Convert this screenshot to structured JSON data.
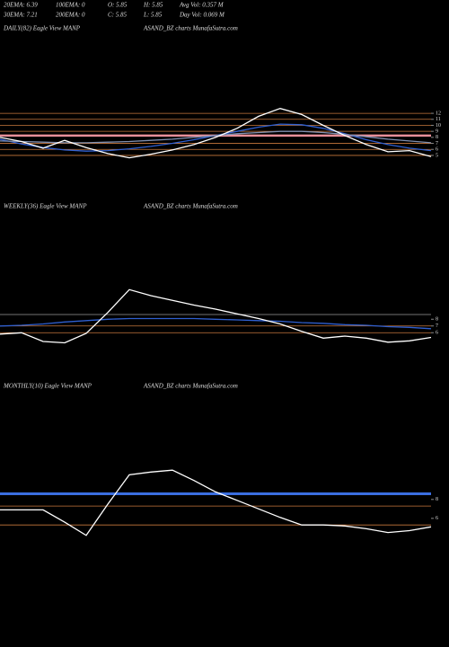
{
  "header": {
    "row1": [
      "20EMA: 6.39",
      "100EMA: 0",
      "O: 5.85",
      "H: 5.85",
      "Avg Vol: 0.357 M"
    ],
    "row2": [
      "30EMA: 7.21",
      "200EMA: 0",
      "C: 5.85",
      "L: 5.85",
      "Day Vol: 0.069 M"
    ]
  },
  "chart_data": [
    {
      "type": "line",
      "title": "DAILY(82) Eagle  View  MANP",
      "subtitle": "ASAND_BZ charts MunafaSutra.com",
      "ylim": [
        1.7,
        15.9
      ],
      "yticks": [
        12,
        11,
        10,
        9,
        8,
        7,
        6,
        5
      ],
      "hlines": [
        {
          "value": 12,
          "color": "#c8783c"
        },
        {
          "value": 11,
          "color": "#c8783c"
        },
        {
          "value": 10,
          "color": "#c8783c"
        },
        {
          "value": 9,
          "color": "#c8783c"
        },
        {
          "value": 8.3,
          "color": "#e8909a"
        },
        {
          "value": 7,
          "color": "#c8783c"
        },
        {
          "value": 6,
          "color": "#c8783c"
        },
        {
          "value": 5,
          "color": "#c8783c"
        }
      ],
      "series": [
        {
          "color": "#2f5fd0",
          "values": [
            7.7,
            6.9,
            6.3,
            5.9,
            5.7,
            5.8,
            6.1,
            6.5,
            7.0,
            7.6,
            8.3,
            9.0,
            9.7,
            10.2,
            10.1,
            9.5,
            8.6,
            7.6,
            6.8,
            6.2,
            5.8
          ]
        },
        {
          "color": "#7f8fb0",
          "values": [
            7.4,
            7.3,
            7.2,
            7.1,
            7.1,
            7.2,
            7.3,
            7.5,
            7.7,
            8.0,
            8.3,
            8.6,
            8.8,
            9.0,
            9.0,
            8.8,
            8.5,
            8.1,
            7.7,
            7.4,
            7.1
          ]
        },
        {
          "color": "#ffffff",
          "values": [
            8,
            7.3,
            6.2,
            7.5,
            6.3,
            5.3,
            4.6,
            5.2,
            5.9,
            6.8,
            8,
            9.5,
            11.5,
            12.8,
            11.8,
            10,
            8.3,
            6.8,
            5.6,
            5.8,
            4.8
          ]
        }
      ]
    },
    {
      "type": "line",
      "title": "WEEKLY(36) Eagle  View  MANP",
      "subtitle": "ASAND_BZ charts MunafaSutra.com",
      "ylim": [
        2.7,
        16.7
      ],
      "yticks": [
        8,
        7,
        6
      ],
      "hlines": [
        {
          "value": 8.7,
          "color": "#999999"
        },
        {
          "value": 7,
          "color": "#c8783c"
        },
        {
          "value": 6,
          "color": "#c8783c"
        }
      ],
      "series": [
        {
          "color": "#2f5fd0",
          "values": [
            7.0,
            7.1,
            7.3,
            7.6,
            7.8,
            8.0,
            8.1,
            8.1,
            8.1,
            8.1,
            8.0,
            7.9,
            7.8,
            7.7,
            7.5,
            7.4,
            7.2,
            7.1,
            6.9,
            6.8,
            6.6
          ]
        },
        {
          "color": "#ffffff",
          "values": [
            5.8,
            6.0,
            4.7,
            4.5,
            5.9,
            9.0,
            12.4,
            11.5,
            10.8,
            10.1,
            9.5,
            8.8,
            8.1,
            7.3,
            6.2,
            5.2,
            5.5,
            5.2,
            4.6,
            4.8,
            5.3
          ]
        }
      ]
    },
    {
      "type": "line",
      "title": "MONTHLY(10) Eagle  View  MANP",
      "subtitle": "ASAND_BZ charts MunafaSutra.com",
      "ylim": [
        1.9,
        13.3
      ],
      "yticks": [
        8,
        6
      ],
      "hlines": [
        {
          "value": 7.3,
          "color": "#c8783c"
        },
        {
          "value": 5.3,
          "color": "#c8783c"
        }
      ],
      "series": [
        {
          "color": "#3a6ee0",
          "width": 3,
          "values": [
            8.6,
            8.6,
            8.6,
            8.6,
            8.6,
            8.6,
            8.6,
            8.6,
            8.6,
            8.6,
            8.6,
            8.6,
            8.6,
            8.6,
            8.6,
            8.6,
            8.6,
            8.6,
            8.6,
            8.6,
            8.6
          ]
        },
        {
          "color": "#ffffff",
          "values": [
            6.9,
            6.9,
            6.9,
            5.6,
            4.2,
            7.5,
            10.6,
            10.9,
            11.1,
            10.0,
            8.8,
            7.9,
            7.0,
            6.1,
            5.3,
            5.3,
            5.2,
            4.9,
            4.5,
            4.7,
            5.1
          ]
        }
      ]
    }
  ]
}
